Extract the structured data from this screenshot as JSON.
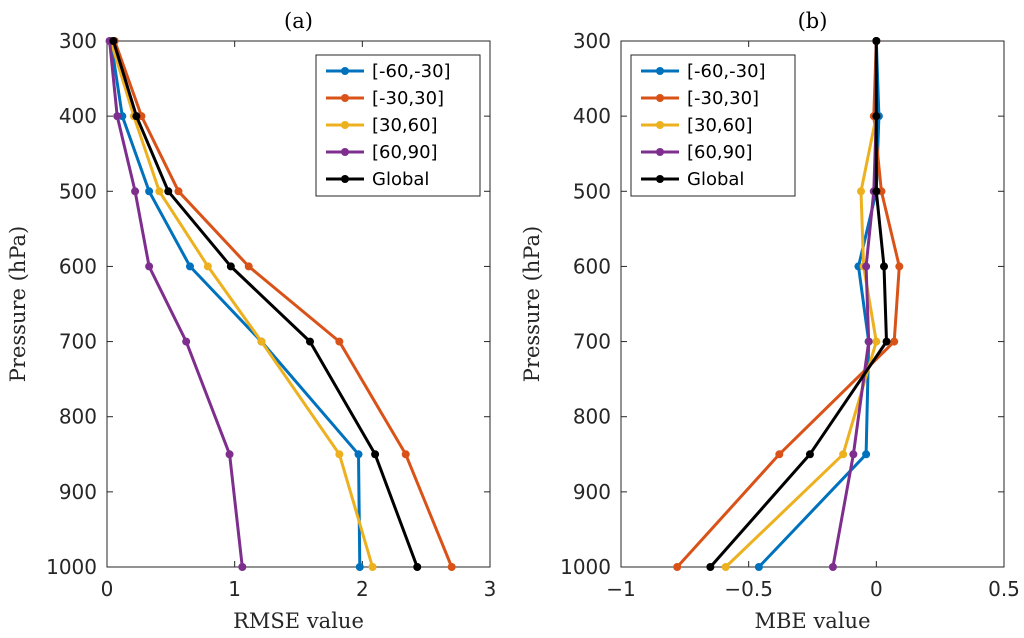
{
  "chart_data": [
    {
      "type": "line",
      "title": "(a)",
      "xlabel": "RMSE value",
      "ylabel": "Pressure (hPa)",
      "xlim": [
        0,
        3
      ],
      "ylim": [
        300,
        1000
      ],
      "y_reversed": true,
      "xticks": [
        "0",
        "1",
        "2",
        "3"
      ],
      "yticks": [
        "300",
        "400",
        "500",
        "600",
        "700",
        "800",
        "900",
        "1000"
      ],
      "legend_position": "top-right",
      "y": [
        300,
        400,
        500,
        600,
        700,
        850,
        1000
      ],
      "series": [
        {
          "name": "[-60,-30]",
          "color": "#0072BD",
          "values": [
            0.03,
            0.12,
            0.33,
            0.65,
            1.21,
            1.97,
            1.98
          ]
        },
        {
          "name": "[-30,30]",
          "color": "#D95319",
          "values": [
            0.06,
            0.27,
            0.56,
            1.11,
            1.82,
            2.34,
            2.7
          ]
        },
        {
          "name": "[30,60]",
          "color": "#EDB120",
          "values": [
            0.03,
            0.21,
            0.41,
            0.79,
            1.21,
            1.82,
            2.08
          ]
        },
        {
          "name": "[60,90]",
          "color": "#7E2F8E",
          "values": [
            0.02,
            0.08,
            0.22,
            0.33,
            0.62,
            0.96,
            1.06
          ]
        },
        {
          "name": "Global",
          "color": "#000000",
          "values": [
            0.05,
            0.23,
            0.48,
            0.97,
            1.59,
            2.1,
            2.43
          ]
        }
      ]
    },
    {
      "type": "line",
      "title": "(b)",
      "xlabel": "MBE value",
      "ylabel": "Pressure (hPa)",
      "xlim": [
        -1,
        0.5
      ],
      "ylim": [
        300,
        1000
      ],
      "y_reversed": true,
      "xticks": [
        "−1",
        "−0.5",
        "0",
        "0.5"
      ],
      "yticks": [
        "300",
        "400",
        "500",
        "600",
        "700",
        "800",
        "900",
        "1000"
      ],
      "legend_position": "top-left",
      "y": [
        300,
        400,
        500,
        600,
        700,
        850,
        1000
      ],
      "series": [
        {
          "name": "[-60,-30]",
          "color": "#0072BD",
          "values": [
            0.0,
            0.01,
            0.0,
            -0.07,
            -0.03,
            -0.04,
            -0.46
          ]
        },
        {
          "name": "[-30,30]",
          "color": "#D95319",
          "values": [
            0.0,
            -0.01,
            0.02,
            0.09,
            0.07,
            -0.38,
            -0.78
          ]
        },
        {
          "name": "[30,60]",
          "color": "#EDB120",
          "values": [
            0.0,
            0.0,
            -0.06,
            -0.05,
            0.0,
            -0.13,
            -0.59
          ]
        },
        {
          "name": "[60,90]",
          "color": "#7E2F8E",
          "values": [
            0.0,
            0.0,
            -0.01,
            -0.04,
            -0.03,
            -0.09,
            -0.17
          ]
        },
        {
          "name": "Global",
          "color": "#000000",
          "values": [
            0.0,
            0.0,
            0.0,
            0.03,
            0.04,
            -0.26,
            -0.65
          ]
        }
      ]
    }
  ]
}
